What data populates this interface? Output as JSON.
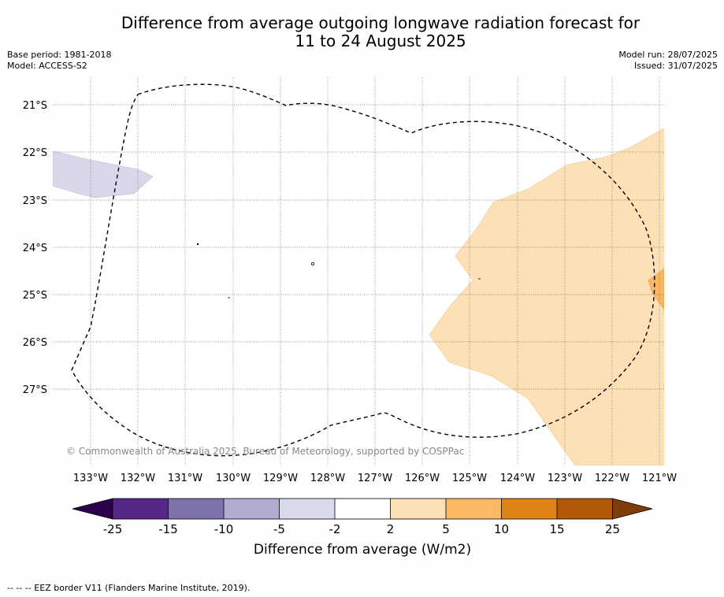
{
  "title_line1": "Difference from average outgoing longwave radiation forecast for",
  "title_line2": "11 to 24 August 2025",
  "base_period": "Base period: 1981-2018",
  "model": "Model: ACCESS-S2",
  "model_run": "Model run: 28/07/2025",
  "issued": "Issued: 31/07/2025",
  "copyright": "© Commonwealth of Australia 2025, Bureau of Meteorology, supported by COSPPac",
  "footnote": "--  --  -- EEZ border V11 (Flanders Marine Institute, 2019).",
  "map": {
    "lat_labels": [
      "21°S",
      "22°S",
      "23°S",
      "24°S",
      "25°S",
      "26°S",
      "27°S"
    ],
    "lon_labels": [
      "133°W",
      "132°W",
      "131°W",
      "130°W",
      "129°W",
      "128°W",
      "127°W",
      "126°W",
      "125°W",
      "124°W",
      "123°W",
      "122°W",
      "121°W"
    ],
    "grid": true,
    "regions": [
      {
        "name": "negative-anomaly-west",
        "category": "-5 to -2",
        "color": "#d8d8ea"
      },
      {
        "name": "positive-anomaly-east",
        "category": "2 to 5",
        "color": "#fde0b6"
      },
      {
        "name": "positive-anomaly-east-edge",
        "category": "5 to 10",
        "color": "#fbb661"
      }
    ],
    "eez_border": "dashed"
  },
  "colorbar": {
    "label": "Difference from average (W/m2)",
    "ticks": [
      "-25",
      "-15",
      "-10",
      "-5",
      "-2",
      "2",
      "5",
      "10",
      "15",
      "25"
    ],
    "low_extend_color": "#2d004b",
    "high_extend_color": "#7f3b08",
    "colors": [
      "#542788",
      "#8073ac",
      "#b2abd2",
      "#d8daeb",
      "#ffffff",
      "#fee0b6",
      "#fdb863",
      "#e08214",
      "#b35806"
    ]
  }
}
